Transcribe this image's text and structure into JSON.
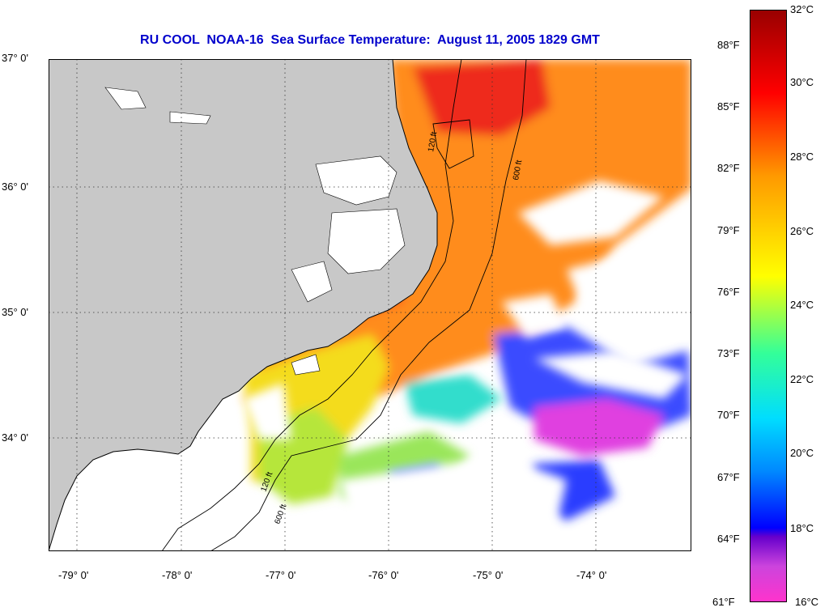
{
  "title": "RU COOL  NOAA-16  Sea Surface Temperature:  August 11, 2005 1829 GMT",
  "latitude_labels": [
    "37° 0'",
    "36° 0'",
    "35° 0'",
    "34° 0'"
  ],
  "longitude_labels": [
    "-79° 0'",
    "-78° 0'",
    "-77° 0'",
    "-76° 0'",
    "-75° 0'",
    "-74° 0'"
  ],
  "isobath_labels": [
    "120 ft",
    "600 ft"
  ],
  "colorbar": {
    "fahrenheit": [
      "88°F",
      "85°F",
      "82°F",
      "79°F",
      "76°F",
      "73°F",
      "70°F",
      "67°F",
      "64°F",
      "61°F"
    ],
    "celsius": [
      "32°C",
      "30°C",
      "28°C",
      "26°C",
      "24°C",
      "22°C",
      "20°C",
      "18°C",
      "16°C"
    ]
  },
  "colors": {
    "title": "#0000cc",
    "land": "#c8c8c8",
    "cloud": "#ffffff",
    "scale": [
      "#ff33cc",
      "#6600cc",
      "#0000ff",
      "#00ccff",
      "#33ff99",
      "#ffff00",
      "#ff9900",
      "#ff0000",
      "#990000"
    ]
  }
}
